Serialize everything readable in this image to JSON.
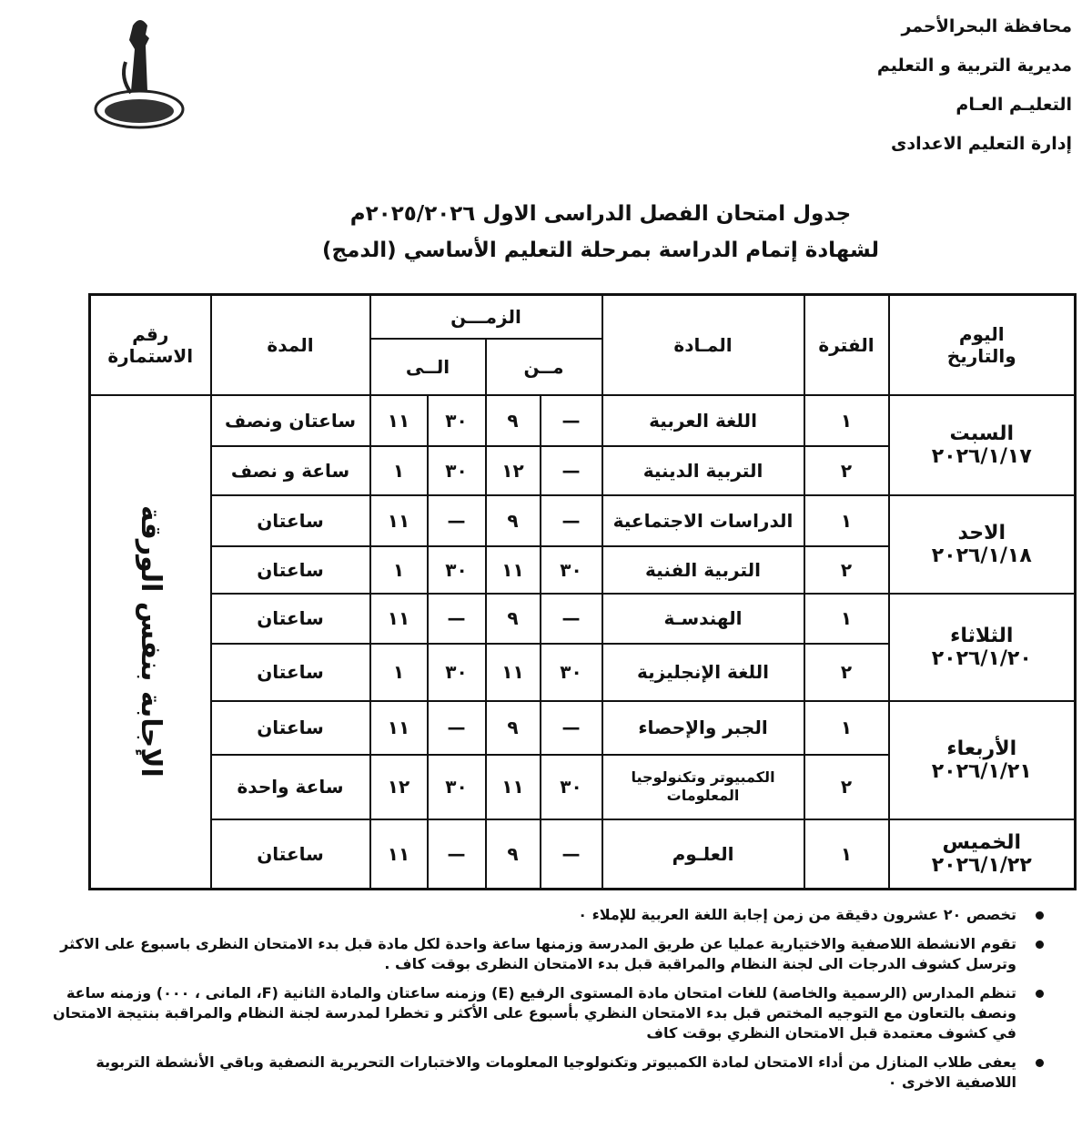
{
  "header": {
    "lines": [
      "محافظة البحرالأحمر",
      "مديرية التربية و التعليم",
      "التعليـم العـام",
      "إدارة التعليم الاعدادى"
    ]
  },
  "title": {
    "lines": [
      "جدول امتحان الفصل الدراسى الاول ٢٠٢٥/٢٠٢٦م",
      "لشهادة إتمام الدراسة بمرحلة التعليم الأساسي (الدمج)"
    ]
  },
  "table": {
    "headers": {
      "day_date": "اليوم والتاريخ",
      "period": "الفترة",
      "subject": "المـادة",
      "time": "الزمـــن",
      "from": "مــن",
      "to": "الــى",
      "duration": "المدة",
      "form_number": "رقم الاستمارة"
    },
    "form_note": "الإجابة بنفس الورقة",
    "days": [
      {
        "day": "السبت",
        "date": "٢٠٢٦/١/١٧",
        "sessions": [
          {
            "period": "١",
            "subject": "اللغة العربية",
            "from_min": "—",
            "from_hour": "٩",
            "to_min": "٣٠",
            "to_hour": "١١",
            "duration": "ساعتان ونصف"
          },
          {
            "period": "٢",
            "subject": "التربية الدينية",
            "from_min": "—",
            "from_hour": "١٢",
            "to_min": "٣٠",
            "to_hour": "١",
            "duration": "ساعة و نصف"
          }
        ]
      },
      {
        "day": "الاحد",
        "date": "٢٠٢٦/١/١٨",
        "sessions": [
          {
            "period": "١",
            "subject": "الدراسات الاجتماعية",
            "from_min": "—",
            "from_hour": "٩",
            "to_min": "—",
            "to_hour": "١١",
            "duration": "ساعتان"
          },
          {
            "period": "٢",
            "subject": "التربية الفنية",
            "from_min": "٣٠",
            "from_hour": "١١",
            "to_min": "٣٠",
            "to_hour": "١",
            "duration": "ساعتان"
          }
        ]
      },
      {
        "day": "الثلاثاء",
        "date": "٢٠٢٦/١/٢٠",
        "sessions": [
          {
            "period": "١",
            "subject": "الهندسـة",
            "from_min": "—",
            "from_hour": "٩",
            "to_min": "—",
            "to_hour": "١١",
            "duration": "ساعتان"
          },
          {
            "period": "٢",
            "subject": "اللغة الإنجليزية",
            "from_min": "٣٠",
            "from_hour": "١١",
            "to_min": "٣٠",
            "to_hour": "١",
            "duration": "ساعتان"
          }
        ]
      },
      {
        "day": "الأربعاء",
        "date": "٢٠٢٦/١/٢١",
        "sessions": [
          {
            "period": "١",
            "subject": "الجبر والإحصاء",
            "from_min": "—",
            "from_hour": "٩",
            "to_min": "—",
            "to_hour": "١١",
            "duration": "ساعتان"
          },
          {
            "period": "٢",
            "subject": "الكمبيوتر وتكنولوجيا المعلومات",
            "from_min": "٣٠",
            "from_hour": "١١",
            "to_min": "٣٠",
            "to_hour": "١٢",
            "duration": "ساعة واحدة"
          }
        ]
      },
      {
        "day": "الخميس",
        "date": "٢٠٢٦/١/٢٢",
        "sessions": [
          {
            "period": "١",
            "subject": "العلـوم",
            "from_min": "—",
            "from_hour": "٩",
            "to_min": "—",
            "to_hour": "١١",
            "duration": "ساعتان"
          }
        ]
      }
    ]
  },
  "notes": [
    "تخصص ٢٠ عشرون دقيقة من زمن إجابة اللغة العربية للإملاء ٠",
    "تقوم الانشطة اللاصفية والاختيارية عمليا عن طريق المدرسة وزمنها ساعة واحدة لكل مادة قبل بدء الامتحان النظرى باسبوع على الاكثر وترسل كشوف الدرجات الى لجنة النظام والمراقبة قبل بدء الامتحان النظرى بوقت كاف .",
    "تنظم المدارس (الرسمية والخاصة) للغات امتحان مادة المستوى الرفيع (E) وزمنه ساعتان والمادة الثانية (F، المانى ، ٠٠٠) وزمنه ساعة ونصف بالتعاون مع التوجيه المختص قبل بدء الامتحان النظري بأسبوع على الأكثر و تخطرا لمدرسة لجنة النظام والمراقبة بنتيجة الامتحان في كشوف معتمدة قبل الامتحان النظري بوقت كاف",
    "يعفى طلاب المنازل من أداء الامتحان لمادة الكمبيوتر وتكنولوجيا المعلومات والاختبارات التحريرية النصفية وباقي الأنشطة التربوية اللاصفية الاخرى ٠"
  ]
}
